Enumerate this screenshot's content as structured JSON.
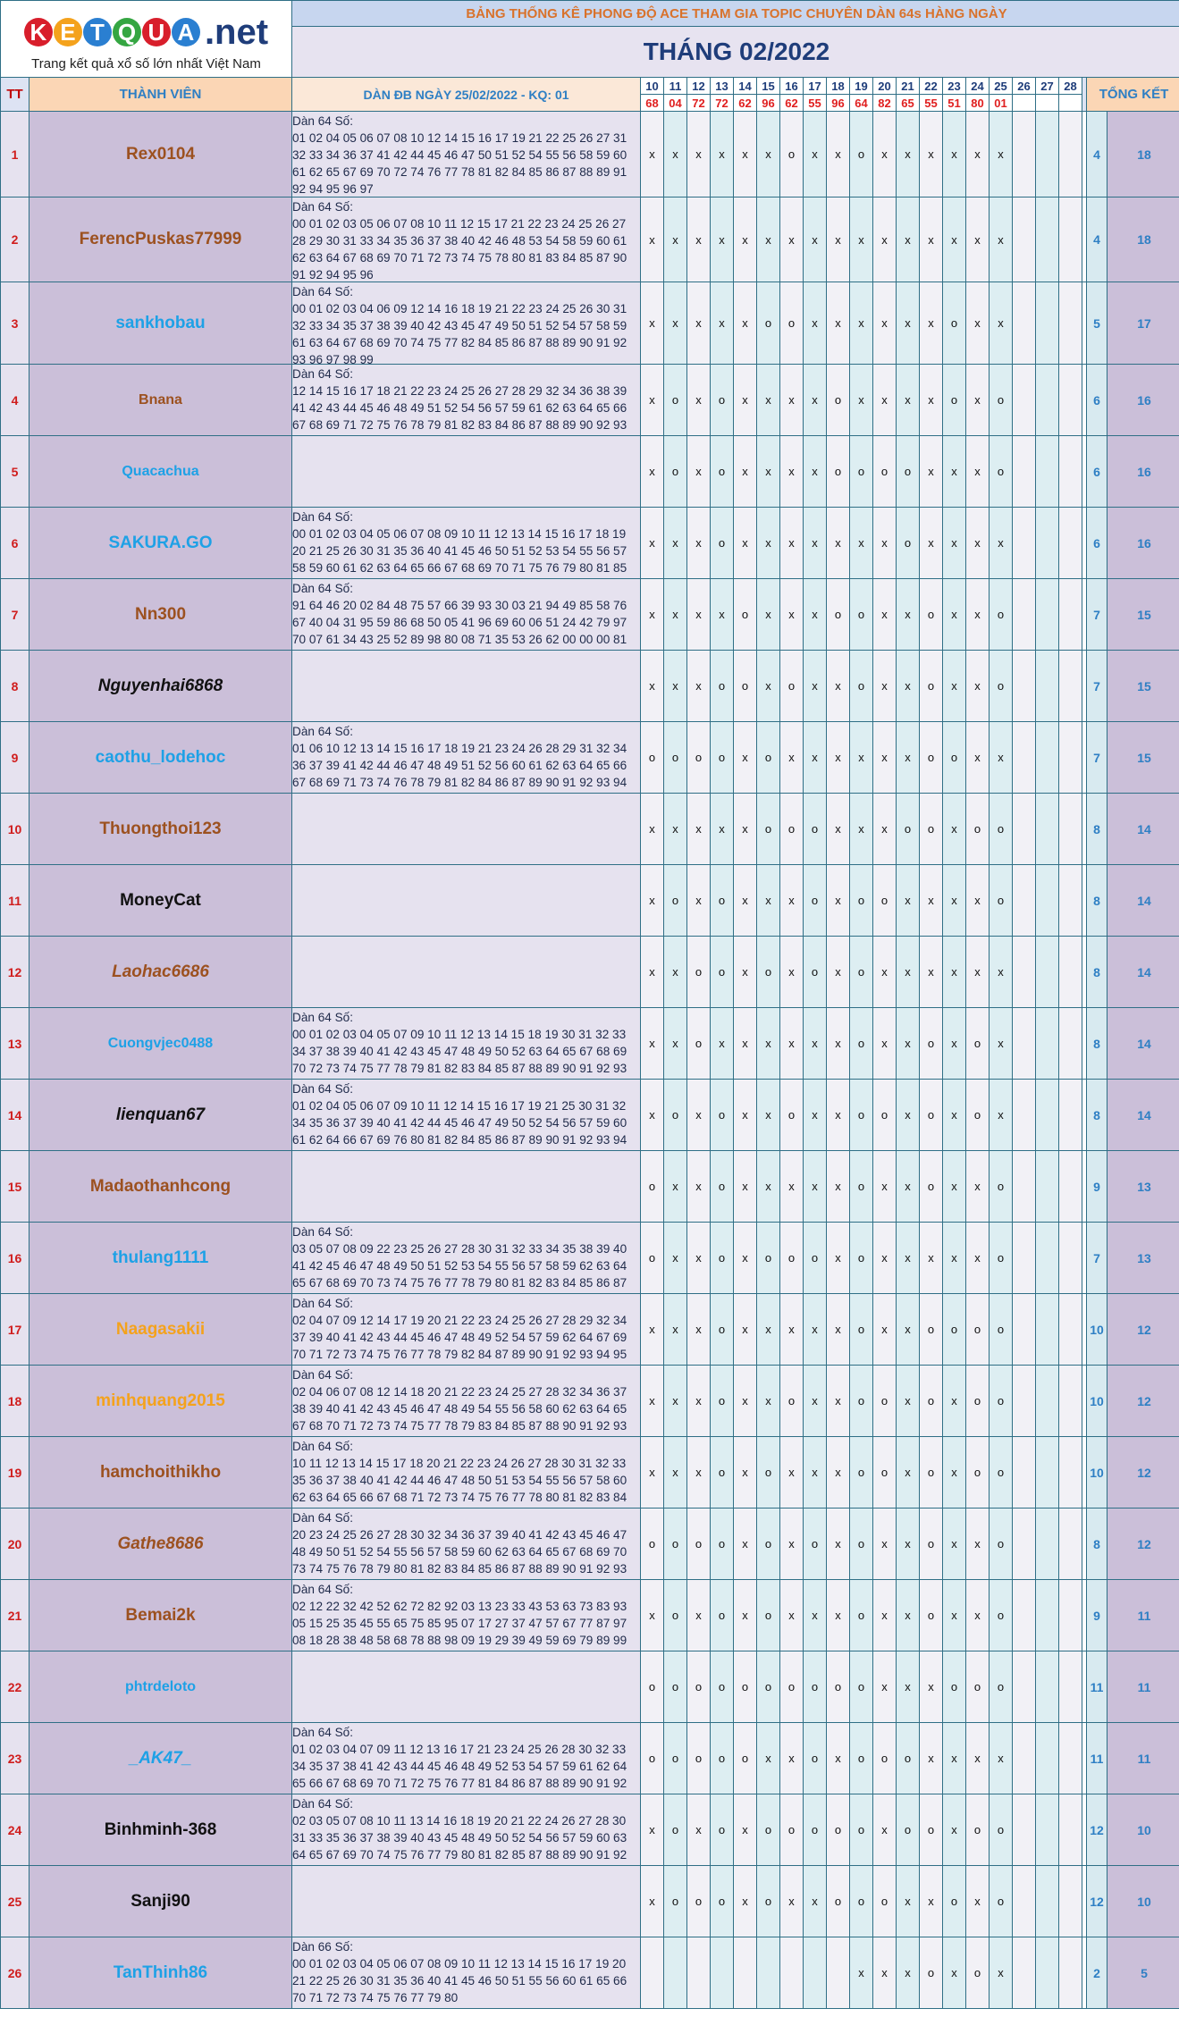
{
  "logo": {
    "brand_letters": [
      "K",
      "E",
      "T",
      "Q",
      "U",
      "A"
    ],
    "brand_suffix": ".net",
    "tagline": "Trang kết quả xổ số lớn nhất Việt Nam",
    "letter_colors": [
      "#d81e2b",
      "#f4a21c",
      "#2a7fd1",
      "#35a642",
      "#d81e2b",
      "#2a7fd1"
    ]
  },
  "header": {
    "title": "BẢNG THỐNG KÊ PHONG ĐỘ ACE THAM GIA TOPIC CHUYÊN DÀN 64s HÀNG NGÀY",
    "month": "THÁNG 02/2022"
  },
  "columns": {
    "tt": "TT",
    "member": "THÀNH VIÊN",
    "dan": "DÀN ĐB NGÀY 25/02/2022 - KQ: 01",
    "tong": "TỔNG KẾT"
  },
  "days": [
    "10",
    "11",
    "12",
    "13",
    "14",
    "15",
    "16",
    "17",
    "18",
    "19",
    "20",
    "21",
    "22",
    "23",
    "24",
    "25",
    "26",
    "27",
    "28"
  ],
  "results": [
    "68",
    "04",
    "72",
    "72",
    "62",
    "96",
    "62",
    "55",
    "96",
    "64",
    "82",
    "65",
    "55",
    "51",
    "80",
    "01",
    "",
    "",
    ""
  ],
  "rows": [
    {
      "tt": "1",
      "name": "Rex0104",
      "color": "#9c5120",
      "italic": false,
      "size": 19,
      "dan": "Dàn 64 Số:\n01 02 04 05 06 07 08 10 12 14 15 16 17 19 21 22 25 26 27 31 32 33 34 36 37 41 42 44 45 46 47 50 51 52 54 55 56 58 59 60 61 62 65 67 69 70 72 74 76 77 78 81 82 84 85 86 87 88 89 91 92 94 95 96 97",
      "marks": [
        "x",
        "x",
        "x",
        "x",
        "x",
        "x",
        "o",
        "x",
        "x",
        "o",
        "x",
        "x",
        "x",
        "x",
        "x",
        "x",
        "",
        "",
        ""
      ],
      "s1": "4",
      "s2": "18"
    },
    {
      "tt": "2",
      "name": "FerencPuskas77999",
      "color": "#9c5120",
      "italic": false,
      "size": 19,
      "dan": "Dàn 64 Số:\n00 01 02 03 05 06 07 08 10 11 12 15 17 21 22 23 24 25 26 27 28 29 30 31 33 34 35 36 37 38 40 42 46 48 53 54 58 59 60 61 62 63 64 67 68 69 70 71 72 73 74 75 78 80 81 83 84 85 87 90 91 92 94 95 96",
      "marks": [
        "x",
        "x",
        "x",
        "x",
        "x",
        "x",
        "x",
        "x",
        "x",
        "x",
        "x",
        "x",
        "x",
        "x",
        "x",
        "x",
        "",
        "",
        ""
      ],
      "s1": "4",
      "s2": "18"
    },
    {
      "tt": "3",
      "name": "sankhobau",
      "color": "#1ea1e6",
      "italic": false,
      "size": 19,
      "dan": "Dàn 64 Số:\n00 01 02 03 04 06 09 12 14 16 18 19 21 22 23 24 25 26 30 31 32 33 34 35 37 38 39 40 42 43 45 47 49 50 51 52 54 57 58 59 61 63 64 67 68 69 70 74 75 77 82 84 85 86 87 88 89 90 91 92 93 96 97 98 99",
      "marks": [
        "x",
        "x",
        "x",
        "x",
        "x",
        "o",
        "o",
        "x",
        "x",
        "x",
        "x",
        "x",
        "x",
        "o",
        "x",
        "x",
        "",
        "",
        ""
      ],
      "s1": "5",
      "s2": "17"
    },
    {
      "tt": "4",
      "name": "Bnana",
      "color": "#9c5120",
      "italic": false,
      "size": 16,
      "dan": "Dàn 64 Số:\n12 14 15 16 17 18 21 22 23 24 25 26 27 28 29 32 34 36 38 39 41 42 43 44 45 46 48 49 51 52 54 56 57 59 61 62 63 64 65 66 67 68 69 71 72 75 76 78 79 81 82 83 84 86 87 88 89 90 92 93 94 95 96 97 98",
      "marks": [
        "x",
        "o",
        "x",
        "o",
        "x",
        "x",
        "x",
        "x",
        "o",
        "x",
        "x",
        "x",
        "x",
        "o",
        "x",
        "o",
        "",
        "",
        ""
      ],
      "s1": "6",
      "s2": "16"
    },
    {
      "tt": "5",
      "name": "Quacachua",
      "color": "#1ea1e6",
      "italic": false,
      "size": 16,
      "dan": "",
      "marks": [
        "x",
        "o",
        "x",
        "o",
        "x",
        "x",
        "x",
        "x",
        "o",
        "o",
        "o",
        "o",
        "x",
        "x",
        "x",
        "o",
        "",
        "",
        ""
      ],
      "s1": "6",
      "s2": "16"
    },
    {
      "tt": "6",
      "name": "SAKURA.GO",
      "color": "#1ea1e6",
      "italic": false,
      "size": 19,
      "dan": "Dàn 64 Số:\n00 01 02 03 04 05 06 07 08 09 10 11 12 13 14 15 16 17 18 19 20 21 25 26 30 31 35 36 40 41 45 46 50 51 52 53 54 55 56 57 58 59 60 61 62 63 64 65 66 67 68 69 70 71 75 76 79 80 81 85 86 90 91 95 96",
      "marks": [
        "x",
        "x",
        "x",
        "o",
        "x",
        "x",
        "x",
        "x",
        "x",
        "x",
        "x",
        "o",
        "x",
        "x",
        "x",
        "x",
        "",
        "",
        ""
      ],
      "s1": "6",
      "s2": "16"
    },
    {
      "tt": "7",
      "name": "Nn300",
      "color": "#9c5120",
      "italic": false,
      "size": 19,
      "dan": "Dàn 64 Số:\n91 64 46 20 02 84 48 75 57 66 39 93 30 03 21 94 49 85 58 76 67 40 04 31 95 59 86 68 50 05 41 96 69 60 06 51 24 42 79 97 70 07 61 34 43 25 52 89 98 80 08 71 35 53 26 62 00 00 00 81 54 45 36 63",
      "marks": [
        "x",
        "x",
        "x",
        "x",
        "o",
        "x",
        "x",
        "x",
        "o",
        "o",
        "x",
        "x",
        "o",
        "x",
        "x",
        "o",
        "",
        "",
        ""
      ],
      "s1": "7",
      "s2": "15"
    },
    {
      "tt": "8",
      "name": "Nguyenhai6868",
      "color": "#111111",
      "italic": true,
      "size": 19,
      "dan": "",
      "marks": [
        "x",
        "x",
        "x",
        "o",
        "o",
        "x",
        "o",
        "x",
        "x",
        "o",
        "x",
        "x",
        "o",
        "x",
        "x",
        "o",
        "",
        "",
        ""
      ],
      "s1": "7",
      "s2": "15"
    },
    {
      "tt": "9",
      "name": "caothu_lodehoc",
      "color": "#1ea1e6",
      "italic": false,
      "size": 19,
      "dan": "Dàn 64 Số:\n01 06 10 12 13 14 15 16 17 18 19 21 23 24 26 28 29 31 32 34 36 37 39 41 42 44 46 47 48 49 51 52 56 60 61 62 63 64 65 66 67 68 69 71 73 74 76 78 79 81 82 84 86 87 89 90 91 92 93 94 96 97 98 99",
      "marks": [
        "o",
        "o",
        "o",
        "o",
        "x",
        "o",
        "x",
        "x",
        "x",
        "x",
        "x",
        "x",
        "o",
        "o",
        "x",
        "x",
        "",
        "",
        ""
      ],
      "s1": "7",
      "s2": "15"
    },
    {
      "tt": "10",
      "name": "Thuongthoi123",
      "color": "#9c5120",
      "italic": false,
      "size": 19,
      "dan": "",
      "marks": [
        "x",
        "x",
        "x",
        "x",
        "x",
        "o",
        "o",
        "o",
        "x",
        "x",
        "x",
        "o",
        "o",
        "x",
        "o",
        "o",
        "",
        "",
        ""
      ],
      "s1": "8",
      "s2": "14"
    },
    {
      "tt": "11",
      "name": "MoneyCat",
      "color": "#111111",
      "italic": false,
      "size": 19,
      "dan": "",
      "marks": [
        "x",
        "o",
        "x",
        "o",
        "x",
        "x",
        "x",
        "o",
        "x",
        "o",
        "o",
        "x",
        "x",
        "x",
        "x",
        "o",
        "",
        "",
        ""
      ],
      "s1": "8",
      "s2": "14"
    },
    {
      "tt": "12",
      "name": "Laohac6686",
      "color": "#9c5120",
      "italic": true,
      "size": 19,
      "dan": "",
      "marks": [
        "x",
        "x",
        "o",
        "o",
        "x",
        "o",
        "x",
        "o",
        "x",
        "o",
        "x",
        "x",
        "x",
        "x",
        "x",
        "x",
        "",
        "",
        ""
      ],
      "s1": "8",
      "s2": "14"
    },
    {
      "tt": "13",
      "name": "Cuongvjec0488",
      "color": "#1ea1e6",
      "italic": false,
      "size": 16,
      "dan": "Dàn 64 Số:\n00 01 02 03 04 05 07 09 10 11 12 13 14 15 18 19 30 31 32 33 34 37 38 39 40 41 42 43 45 47 48 49 50 52 63 64 65 67 68 69 70 72 73 74 75 77 78 79 81 82 83 84 85 87 88 89 90 91 92 93 94 95 96 97 98",
      "marks": [
        "x",
        "x",
        "o",
        "x",
        "x",
        "x",
        "x",
        "x",
        "x",
        "o",
        "x",
        "x",
        "o",
        "x",
        "o",
        "x",
        "",
        "",
        ""
      ],
      "s1": "8",
      "s2": "14"
    },
    {
      "tt": "14",
      "name": "lienquan67",
      "color": "#111111",
      "italic": true,
      "size": 19,
      "dan": "Dàn 64 Số:\n01 02 04 05 06 07 09 10 11 12 14 15 16 17 19 21 25 30 31 32 34 35 36 37 39 40 41 42 44 45 46 47 49 50 52 54 56 57 59 60 61 62 64 66 67 69 76 80 81 82 84 85 86 87 89 90 91 92 93 94 95 96 97 98 99",
      "marks": [
        "x",
        "o",
        "x",
        "o",
        "x",
        "x",
        "o",
        "x",
        "x",
        "o",
        "o",
        "x",
        "o",
        "x",
        "o",
        "x",
        "",
        "",
        ""
      ],
      "s1": "8",
      "s2": "14"
    },
    {
      "tt": "15",
      "name": "Madaothanhcong",
      "color": "#9c5120",
      "italic": false,
      "size": 19,
      "dan": "",
      "marks": [
        "o",
        "x",
        "x",
        "o",
        "x",
        "x",
        "x",
        "x",
        "x",
        "o",
        "x",
        "x",
        "o",
        "x",
        "x",
        "o",
        "",
        "",
        ""
      ],
      "s1": "9",
      "s2": "13"
    },
    {
      "tt": "16",
      "name": "thulang1111",
      "color": "#1ea1e6",
      "italic": false,
      "size": 19,
      "dan": "Dàn 64 Số:\n03 05 07 08 09 22 23 25 26 27 28 30 31 32 33 34 35 38 39 40 41 42 45 46 47 48 49 50 51 52 53 54 55 56 57 58 59 62 63 64 65 67 68 69 70 73 74 75 76 77 78 79 80 81 82 83 84 85 86 87 88 89 90 91 92 93 94 95 96 97 98",
      "marks": [
        "o",
        "x",
        "x",
        "o",
        "x",
        "o",
        "o",
        "o",
        "x",
        "o",
        "x",
        "x",
        "x",
        "x",
        "x",
        "o",
        "",
        "",
        ""
      ],
      "s1": "7",
      "s2": "13"
    },
    {
      "tt": "17",
      "name": "Naagasakii",
      "color": "#f4a21c",
      "italic": false,
      "size": 19,
      "dan": "Dàn 64 Số:\n02 04 07 09 12 14 17 19 20 21 22 23 24 25 26 27 28 29 32 34 37 39 40 41 42 43 44 45 46 47 48 49 52 54 57 59 62 64 67 69 70 71 72 73 74 75 76 77 78 79 82 84 87 89 90 91 92 93 94 95 96 97 98 99",
      "marks": [
        "x",
        "x",
        "x",
        "o",
        "x",
        "x",
        "x",
        "x",
        "x",
        "o",
        "x",
        "x",
        "o",
        "o",
        "o",
        "o",
        "",
        "",
        ""
      ],
      "s1": "10",
      "s2": "12"
    },
    {
      "tt": "18",
      "name": "minhquang2015",
      "color": "#f4a21c",
      "italic": false,
      "size": 19,
      "dan": "Dàn 64 Số:\n02 04 06 07 08 12 14 18 20 21 22 23 24 25 27 28 32 34 36 37 38 39 40 41 42 43 45 46 47 48 49 54 55 56 58 60 62 63 64 65 67 68 70 71 72 73 74 75 77 78 79 83 84 85 87 88 90 91 92 93 94 96 97 98",
      "marks": [
        "x",
        "x",
        "x",
        "o",
        "x",
        "x",
        "o",
        "x",
        "x",
        "o",
        "o",
        "x",
        "o",
        "x",
        "o",
        "o",
        "",
        "",
        ""
      ],
      "s1": "10",
      "s2": "12"
    },
    {
      "tt": "19",
      "name": "hamchoithikho",
      "color": "#9c5120",
      "italic": false,
      "size": 19,
      "dan": "Dàn 64 Số:\n10 11 12 13 14 15 17 18 20 21 22 23 24 26 27 28 30 31 32 33 35 36 37 38 40 41 42 44 46 47 48 50 51 53 54 55 56 57 58 60 62 63 64 65 66 67 68 71 72 73 74 75 76 77 78 80 81 82 83 84 85 86 87 88",
      "marks": [
        "x",
        "x",
        "x",
        "o",
        "x",
        "o",
        "x",
        "x",
        "x",
        "o",
        "o",
        "x",
        "o",
        "x",
        "o",
        "o",
        "",
        "",
        ""
      ],
      "s1": "10",
      "s2": "12"
    },
    {
      "tt": "20",
      "name": "Gathe8686",
      "color": "#9c5120",
      "italic": true,
      "size": 19,
      "dan": "Dàn 64 Số:\n20 23 24 25 26 27 28 30 32 34 36 37 39 40 41 42 43 45 46 47 48 49 50 51 52 54 55 56 57 58 59 60 62 63 64 65 67 68 69 70 73 74 75 76 78 79 80 81 82 83 84 85 86 87 88 89 90 91 92 93 94 95 96 97",
      "marks": [
        "o",
        "o",
        "o",
        "o",
        "x",
        "o",
        "x",
        "o",
        "x",
        "o",
        "x",
        "x",
        "o",
        "x",
        "x",
        "o",
        "",
        "",
        ""
      ],
      "s1": "8",
      "s2": "12"
    },
    {
      "tt": "21",
      "name": "Bemai2k",
      "color": "#9c5120",
      "italic": false,
      "size": 19,
      "dan": "Dàn 64 Số:\n02 12 22 32 42 52 62 72 82 92 03 13 23 33 43 53 63 73 83 93 05 15 25 35 45 55 65 75 85 95 07 17 27 37 47 57 67 77 87 97 08 18 28 38 48 58 68 78 88 98 09 19 29 39 49 59 69 79 89 99 06 16 26 36",
      "marks": [
        "x",
        "o",
        "x",
        "o",
        "x",
        "o",
        "x",
        "x",
        "x",
        "o",
        "x",
        "x",
        "o",
        "x",
        "x",
        "o",
        "",
        "",
        ""
      ],
      "s1": "9",
      "s2": "11"
    },
    {
      "tt": "22",
      "name": "phtrdeloto",
      "color": "#1ea1e6",
      "italic": false,
      "size": 16,
      "dan": "",
      "marks": [
        "o",
        "o",
        "o",
        "o",
        "o",
        "o",
        "o",
        "o",
        "o",
        "o",
        "x",
        "x",
        "x",
        "o",
        "o",
        "o",
        "",
        "",
        ""
      ],
      "s1": "11",
      "s2": "11"
    },
    {
      "tt": "23",
      "name": "_AK47_",
      "color": "#1ea1e6",
      "italic": true,
      "size": 19,
      "dan": "Dàn 64 Số:\n01 02 03 04 07 09 11 12 13 16 17 21 23 24 25 26 28 30 32 33 34 35 37 38 41 42 43 44 45 46 48 49 52 53 54 57 59 61 62 64 65 66 67 68 69 70 71 72 75 76 77 81 84 86 87 88 89 90 91 92 93 94 95 96 98",
      "marks": [
        "o",
        "o",
        "o",
        "o",
        "o",
        "x",
        "x",
        "o",
        "x",
        "o",
        "o",
        "o",
        "x",
        "x",
        "x",
        "x",
        "",
        "",
        ""
      ],
      "s1": "11",
      "s2": "11"
    },
    {
      "tt": "24",
      "name": "Binhminh-368",
      "color": "#111111",
      "italic": false,
      "size": 19,
      "dan": "Dàn 64 Số:\n02 03 05 07 08 10 11 13 14 16 18 19 20 21 22 24 26 27 28 30 31 33 35 36 37 38 39 40 43 45 48 49 50 52 54 56 57 59 60 63 64 65 67 69 70 74 75 76 77 79 80 81 82 85 87 88 89 90 91 92 93 95 96 97 98",
      "marks": [
        "x",
        "o",
        "x",
        "o",
        "x",
        "o",
        "o",
        "o",
        "o",
        "o",
        "x",
        "o",
        "o",
        "x",
        "o",
        "o",
        "",
        "",
        ""
      ],
      "s1": "12",
      "s2": "10"
    },
    {
      "tt": "25",
      "name": "Sanji90",
      "color": "#111111",
      "italic": false,
      "size": 19,
      "dan": "",
      "marks": [
        "x",
        "o",
        "o",
        "o",
        "x",
        "o",
        "x",
        "x",
        "o",
        "o",
        "o",
        "x",
        "x",
        "o",
        "x",
        "o",
        "",
        "",
        ""
      ],
      "s1": "12",
      "s2": "10"
    },
    {
      "tt": "26",
      "name": "TanThinh86",
      "color": "#1ea1e6",
      "italic": false,
      "size": 19,
      "dan": "Dàn 66 Số:\n00 01 02 03 04 05 06 07 08 09 10 11 12 13 14 15 16 17 19 20 21 22 25 26 30 31 35 36 40 41 45 46 50 51 55 56 60 61 65 66 70 71 72 73 74 75 76 77 79 80",
      "marks": [
        "",
        "",
        "",
        "",
        "",
        "",
        "",
        "",
        "",
        "x",
        "x",
        "x",
        "o",
        "x",
        "o",
        "x",
        "",
        "",
        ""
      ],
      "s1": "2",
      "s2": "5"
    }
  ]
}
